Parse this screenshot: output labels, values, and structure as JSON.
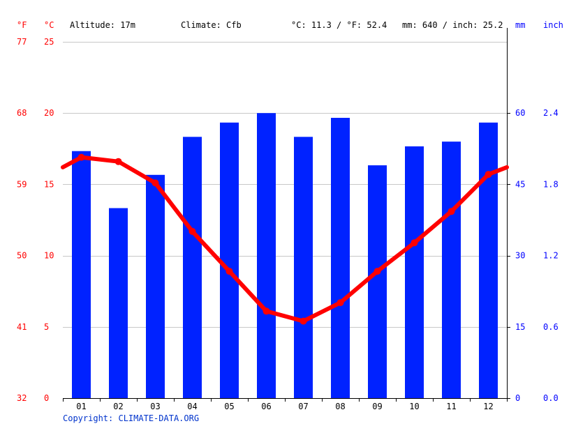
{
  "header": {
    "unit_f": "°F",
    "unit_c": "°C",
    "altitude": "Altitude: 17m",
    "climate": "Climate: Cfb",
    "temp_avg": "°C: 11.3 / °F: 52.4",
    "precip_total": "mm: 640 / inch: 25.2",
    "unit_mm": "mm",
    "unit_inch": "inch"
  },
  "copyright": "Copyright: CLIMATE-DATA.ORG",
  "colors": {
    "bars": "#0022ff",
    "line": "#ff0000",
    "left_axis": "#ff0000",
    "right_axis": "#0000ff"
  },
  "chart_data": {
    "type": "bar",
    "categories": [
      "01",
      "02",
      "03",
      "04",
      "05",
      "06",
      "07",
      "08",
      "09",
      "10",
      "11",
      "12"
    ],
    "series": [
      {
        "type": "bar",
        "axis": "right",
        "values": [
          52,
          40,
          47,
          55,
          58,
          60,
          55,
          59,
          49,
          53,
          54,
          58
        ]
      },
      {
        "type": "line",
        "axis": "left",
        "values": [
          16.9,
          16.6,
          15.1,
          11.7,
          8.9,
          6.1,
          5.4,
          6.7,
          8.9,
          10.9,
          13.1,
          15.7
        ]
      }
    ],
    "line_edge_values": [
      16.2,
      16.2
    ],
    "left_axis": {
      "celsius_ticks": [
        0,
        5,
        10,
        15,
        20,
        25
      ],
      "fahrenheit_ticks": [
        32,
        41,
        50,
        59,
        68,
        77
      ],
      "ylim": [
        0,
        25
      ]
    },
    "right_axis": {
      "mm_ticks": [
        0,
        15,
        30,
        45,
        60
      ],
      "inch_ticks": [
        "0.0",
        "0.6",
        "1.2",
        "1.8",
        "2.4"
      ],
      "ylim": [
        0,
        75
      ]
    },
    "grid": true
  }
}
